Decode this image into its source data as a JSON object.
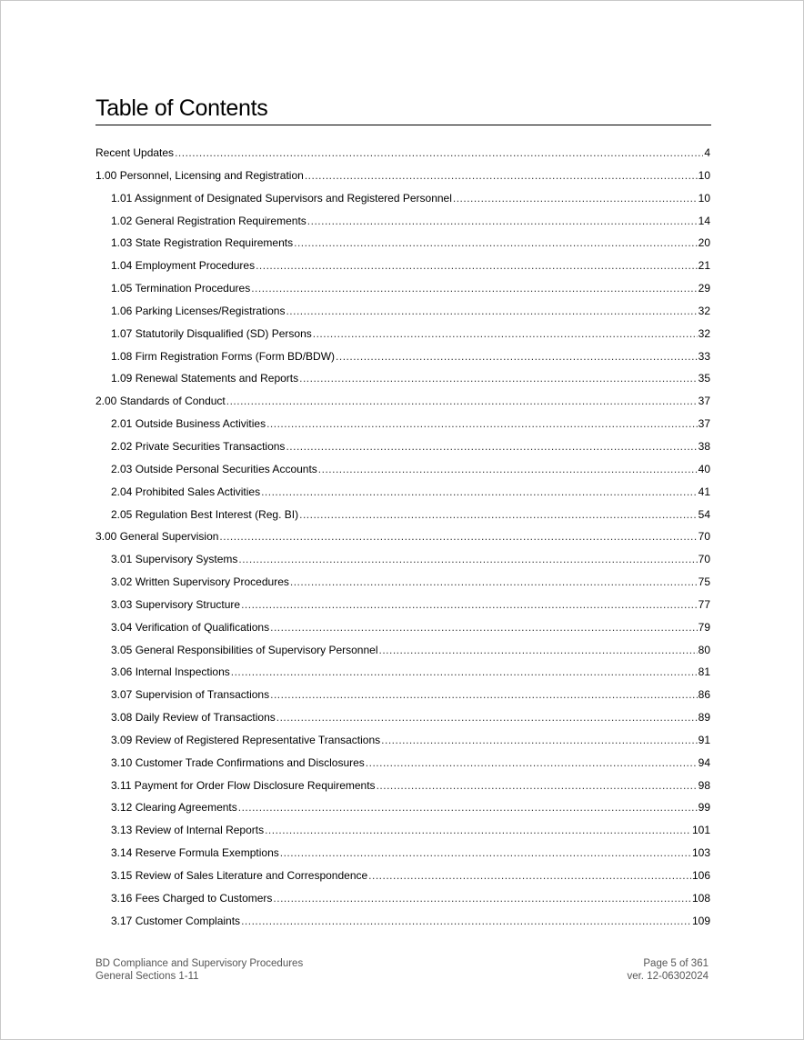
{
  "title": "Table of Contents",
  "entries": [
    {
      "label": "Recent Updates",
      "page": "4",
      "level": 1
    },
    {
      "label": "1.00 Personnel, Licensing and Registration",
      "page": "10",
      "level": 1
    },
    {
      "label": "1.01 Assignment of Designated Supervisors and Registered Personnel",
      "page": "10",
      "level": 2
    },
    {
      "label": "1.02 General Registration Requirements",
      "page": "14",
      "level": 2
    },
    {
      "label": "1.03 State Registration Requirements",
      "page": "20",
      "level": 2
    },
    {
      "label": "1.04 Employment Procedures",
      "page": "21",
      "level": 2
    },
    {
      "label": "1.05 Termination Procedures",
      "page": "29",
      "level": 2
    },
    {
      "label": "1.06 Parking Licenses/Registrations",
      "page": "32",
      "level": 2
    },
    {
      "label": "1.07 Statutorily Disqualified (SD) Persons",
      "page": "32",
      "level": 2
    },
    {
      "label": "1.08 Firm Registration Forms (Form BD/BDW)",
      "page": "33",
      "level": 2
    },
    {
      "label": "1.09 Renewal Statements and Reports",
      "page": "35",
      "level": 2
    },
    {
      "label": "2.00 Standards of Conduct",
      "page": "37",
      "level": 1
    },
    {
      "label": "2.01 Outside Business Activities",
      "page": "37",
      "level": 2
    },
    {
      "label": "2.02 Private Securities Transactions",
      "page": "38",
      "level": 2
    },
    {
      "label": "2.03 Outside Personal Securities Accounts",
      "page": "40",
      "level": 2
    },
    {
      "label": "2.04 Prohibited Sales Activities",
      "page": "41",
      "level": 2
    },
    {
      "label": "2.05 Regulation Best Interest (Reg. BI)",
      "page": "54",
      "level": 2
    },
    {
      "label": "3.00 General Supervision",
      "page": "70",
      "level": 1
    },
    {
      "label": "3.01 Supervisory Systems",
      "page": "70",
      "level": 2
    },
    {
      "label": "3.02 Written Supervisory Procedures",
      "page": "75",
      "level": 2
    },
    {
      "label": "3.03 Supervisory Structure",
      "page": "77",
      "level": 2
    },
    {
      "label": "3.04 Verification of Qualifications",
      "page": "79",
      "level": 2
    },
    {
      "label": "3.05 General Responsibilities of Supervisory Personnel",
      "page": "80",
      "level": 2
    },
    {
      "label": "3.06 Internal Inspections",
      "page": "81",
      "level": 2
    },
    {
      "label": "3.07 Supervision of Transactions",
      "page": "86",
      "level": 2
    },
    {
      "label": "3.08 Daily Review of Transactions",
      "page": "89",
      "level": 2
    },
    {
      "label": "3.09 Review of Registered Representative Transactions",
      "page": "91",
      "level": 2
    },
    {
      "label": "3.10 Customer Trade Confirmations and Disclosures",
      "page": "94",
      "level": 2
    },
    {
      "label": "3.11 Payment for Order Flow Disclosure Requirements",
      "page": "98",
      "level": 2
    },
    {
      "label": "3.12 Clearing Agreements",
      "page": "99",
      "level": 2
    },
    {
      "label": "3.13 Review of Internal Reports",
      "page": "101",
      "level": 2
    },
    {
      "label": "3.14 Reserve Formula Exemptions",
      "page": "103",
      "level": 2
    },
    {
      "label": "3.15 Review of Sales Literature and Correspondence",
      "page": "106",
      "level": 2
    },
    {
      "label": "3.16 Fees Charged to Customers",
      "page": "108",
      "level": 2
    },
    {
      "label": "3.17 Customer Complaints",
      "page": "109",
      "level": 2
    }
  ],
  "footer": {
    "doc_title": "BD Compliance and Supervisory Procedures",
    "section": "General Sections 1-11",
    "page": "Page 5 of 361",
    "version": "ver. 12-06302024"
  }
}
